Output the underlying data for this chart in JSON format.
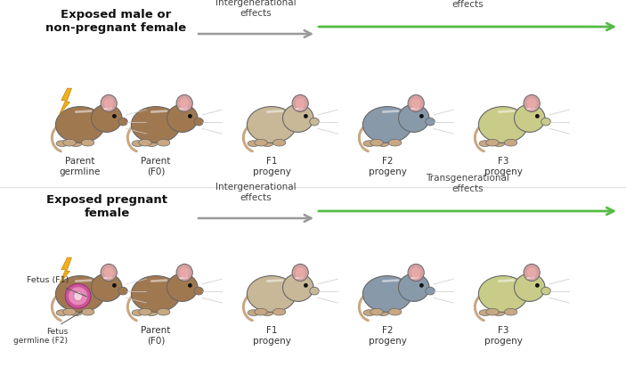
{
  "bg_color": "#ffffff",
  "row1_title": "Exposed male or\nnon-pregnant female",
  "row2_title": "Exposed pregnant\nfemale",
  "intergenerational": "Intergenerational\neffects",
  "transgenerational": "Transgenerational\neffects",
  "mouse_colors_row1": [
    "#a07850",
    "#a07850",
    "#c8b898",
    "#8899aa",
    "#c8cc88"
  ],
  "mouse_colors_row2": [
    "#a07850",
    "#a07850",
    "#c8b898",
    "#8899aa",
    "#c8cc88"
  ],
  "ear_color": "#d4a0a0",
  "tail_color": "#c8a882",
  "arrow_gray": "#999999",
  "arrow_green": "#55bb44",
  "lightning_color": "#f0b020",
  "outline_color": "#666666"
}
